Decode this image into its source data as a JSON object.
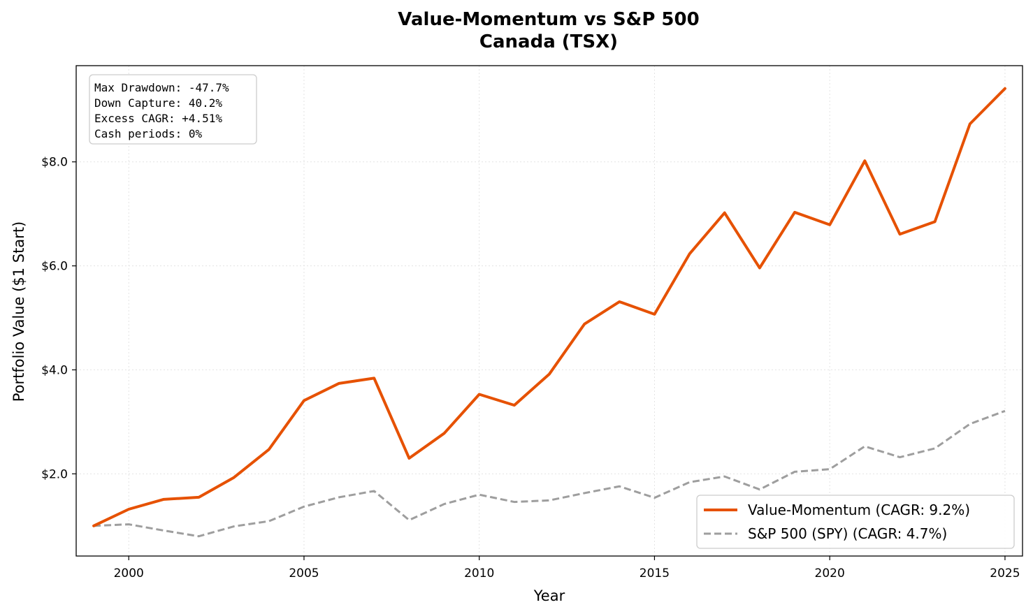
{
  "chart_data": {
    "type": "line",
    "title": "Value-Momentum vs S&P 500",
    "subtitle": "Canada (TSX)",
    "xlabel": "Year",
    "ylabel": "Portfolio Value ($1 Start)",
    "xlim": [
      1998.5,
      2025.5
    ],
    "ylim": [
      0.42,
      9.85
    ],
    "x_ticks": [
      2000,
      2005,
      2010,
      2015,
      2020,
      2025
    ],
    "x_tick_labels": [
      "2000",
      "2005",
      "2010",
      "2015",
      "2020",
      "2025"
    ],
    "y_ticks": [
      2,
      4,
      6,
      8
    ],
    "y_tick_labels": [
      "$2.0",
      "$4.0",
      "$6.0",
      "$8.0"
    ],
    "grid": true,
    "legend_position": "bottom-right",
    "x": [
      1999,
      2000,
      2001,
      2002,
      2003,
      2004,
      2005,
      2006,
      2007,
      2008,
      2009,
      2010,
      2011,
      2012,
      2013,
      2014,
      2015,
      2016,
      2017,
      2018,
      2019,
      2020,
      2021,
      2022,
      2023,
      2024,
      2025
    ],
    "series": [
      {
        "name": "Value-Momentum  (CAGR: 9.2%)",
        "color": "#e65100",
        "style": "solid",
        "values": [
          1.0,
          1.32,
          1.51,
          1.55,
          1.93,
          2.47,
          3.41,
          3.74,
          3.84,
          2.3,
          2.78,
          3.53,
          3.32,
          3.92,
          4.88,
          5.31,
          5.07,
          6.23,
          7.02,
          5.96,
          7.03,
          6.79,
          8.02,
          6.61,
          6.85,
          8.73,
          9.41
        ]
      },
      {
        "name": "S&P 500 (SPY)  (CAGR: 4.7%)",
        "color": "#9e9e9e",
        "style": "dashed",
        "values": [
          1.0,
          1.03,
          0.91,
          0.8,
          0.99,
          1.09,
          1.37,
          1.55,
          1.67,
          1.11,
          1.42,
          1.6,
          1.46,
          1.49,
          1.63,
          1.76,
          1.54,
          1.84,
          1.95,
          1.7,
          2.04,
          2.09,
          2.53,
          2.32,
          2.49,
          2.96,
          3.21
        ]
      }
    ],
    "annotations": [
      "Max Drawdown: -47.7%",
      "Down Capture: 40.2%",
      "Excess CAGR: +4.51%",
      "Cash periods: 0%"
    ]
  }
}
